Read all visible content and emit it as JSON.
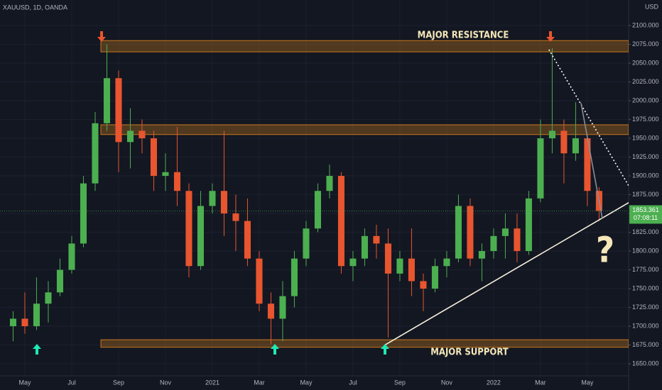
{
  "chart_data": {
    "type": "candlestick",
    "header": "XAUUSD, 1D, OANDA",
    "currency": "USD",
    "x": [
      -0.5,
      0,
      0.5,
      1,
      1.5,
      2,
      2.5,
      3,
      3.5,
      4,
      4.5,
      5,
      5.5,
      6,
      6.5,
      7,
      7.5,
      8,
      8.5,
      9,
      9.5,
      10,
      10.5,
      11,
      11.5,
      12,
      12.5,
      13,
      13.5,
      14,
      14.5,
      15,
      15.5,
      16,
      16.5,
      17,
      17.5,
      18,
      18.5,
      19,
      19.5,
      20,
      20.5,
      21,
      21.5,
      22,
      22.5,
      23,
      23.5,
      24,
      24.5
    ],
    "open": [
      1700,
      1710,
      1700,
      1730,
      1745,
      1775,
      1810,
      1890,
      1970,
      2030,
      1945,
      1960,
      1950,
      1900,
      1905,
      1880,
      1780,
      1860,
      1880,
      1850,
      1840,
      1790,
      1730,
      1710,
      1740,
      1790,
      1830,
      1880,
      1900,
      1780,
      1790,
      1820,
      1810,
      1770,
      1790,
      1760,
      1750,
      1780,
      1790,
      1860,
      1790,
      1800,
      1820,
      1830,
      1800,
      1870,
      1950,
      1960,
      1930,
      1950,
      1880
    ],
    "high": [
      1720,
      1745,
      1765,
      1760,
      1790,
      1820,
      1900,
      1985,
      2075,
      2040,
      1990,
      1975,
      1960,
      1930,
      1965,
      1890,
      1880,
      1890,
      1960,
      1875,
      1870,
      1800,
      1745,
      1760,
      1800,
      1840,
      1890,
      1915,
      1905,
      1800,
      1830,
      1835,
      1830,
      1800,
      1830,
      1770,
      1790,
      1800,
      1875,
      1870,
      1810,
      1830,
      1850,
      1850,
      1880,
      1975,
      2070,
      1975,
      1998,
      1955,
      1885
    ],
    "low": [
      1680,
      1690,
      1695,
      1705,
      1740,
      1770,
      1805,
      1880,
      1960,
      1905,
      1910,
      1930,
      1880,
      1880,
      1860,
      1765,
      1775,
      1850,
      1820,
      1800,
      1780,
      1720,
      1676,
      1680,
      1725,
      1780,
      1825,
      1870,
      1770,
      1760,
      1780,
      1790,
      1685,
      1760,
      1740,
      1720,
      1745,
      1765,
      1785,
      1780,
      1760,
      1790,
      1790,
      1785,
      1795,
      1865,
      1930,
      1890,
      1920,
      1860,
      1840
    ],
    "close": [
      1710,
      1700,
      1730,
      1745,
      1775,
      1810,
      1890,
      1970,
      2030,
      1945,
      1960,
      1950,
      1900,
      1905,
      1880,
      1780,
      1860,
      1880,
      1850,
      1840,
      1790,
      1730,
      1710,
      1740,
      1790,
      1830,
      1880,
      1900,
      1780,
      1790,
      1820,
      1810,
      1770,
      1790,
      1760,
      1750,
      1780,
      1790,
      1860,
      1790,
      1800,
      1820,
      1830,
      1800,
      1870,
      1950,
      1960,
      1930,
      1950,
      1880,
      1853.361
    ],
    "up_color": "#4caf50",
    "down_color": "#e8552f",
    "xlim": [
      -1.06,
      25.76
    ],
    "xticks": [
      {
        "value": 0,
        "label": "May"
      },
      {
        "value": 2,
        "label": "Jul"
      },
      {
        "value": 4,
        "label": "Sep"
      },
      {
        "value": 6,
        "label": "Nov"
      },
      {
        "value": 8,
        "label": "2021"
      },
      {
        "value": 10,
        "label": "Mar"
      },
      {
        "value": 12,
        "label": "May"
      },
      {
        "value": 14,
        "label": "Jul"
      },
      {
        "value": 16,
        "label": "Sep"
      },
      {
        "value": 18,
        "label": "Nov"
      },
      {
        "value": 20,
        "label": "2022"
      },
      {
        "value": 22,
        "label": "Mar"
      },
      {
        "value": 24,
        "label": "May"
      }
    ],
    "ylim": [
      1634,
      2134
    ],
    "yticks": [
      {
        "value": 1650,
        "label": "1650.000"
      },
      {
        "value": 1675,
        "label": "1675.000"
      },
      {
        "value": 1700,
        "label": "1700.000"
      },
      {
        "value": 1725,
        "label": "1725.000"
      },
      {
        "value": 1750,
        "label": "1750.000"
      },
      {
        "value": 1775,
        "label": "1775.000"
      },
      {
        "value": 1800,
        "label": "1800.000"
      },
      {
        "value": 1825,
        "label": "1825.000"
      },
      {
        "value": 1850,
        "label": "1850.000"
      },
      {
        "value": 1875,
        "label": "1875.000"
      },
      {
        "value": 1900,
        "label": "1900.000"
      },
      {
        "value": 1925,
        "label": "1925.000"
      },
      {
        "value": 1950,
        "label": "1950.000"
      },
      {
        "value": 1975,
        "label": "1975.000"
      },
      {
        "value": 2000,
        "label": "2000.000"
      },
      {
        "value": 2025,
        "label": "2025.000"
      },
      {
        "value": 2050,
        "label": "2050.000"
      },
      {
        "value": 2075,
        "label": "2075.000"
      },
      {
        "value": 2100,
        "label": "2100.000"
      }
    ],
    "last_price": {
      "value": 1853.361,
      "label": "1853.361"
    },
    "countdown": "07:08:11",
    "zones": [
      {
        "low": 2065,
        "high": 2080
      },
      {
        "low": 1955,
        "high": 1968
      },
      {
        "low": 1672,
        "high": 1682
      }
    ],
    "zone_color": "#c7781d",
    "lines": [
      {
        "x": [
          15.36,
          25.85
        ],
        "y": [
          1675,
          1866
        ],
        "color": "#f5f0dc",
        "style": "solid"
      },
      {
        "x": [
          22.36,
          25.76
        ],
        "y": [
          2068,
          1887
        ],
        "color": "#ffffff",
        "style": "dotted"
      },
      {
        "x": [
          23.73,
          24.64
        ],
        "y": [
          1997,
          1843
        ],
        "color": "#8a8d96",
        "style": "solid"
      }
    ],
    "annotations": [
      "MAJOR RESISTANCE",
      "MAJOR SUPPORT",
      "?"
    ]
  }
}
